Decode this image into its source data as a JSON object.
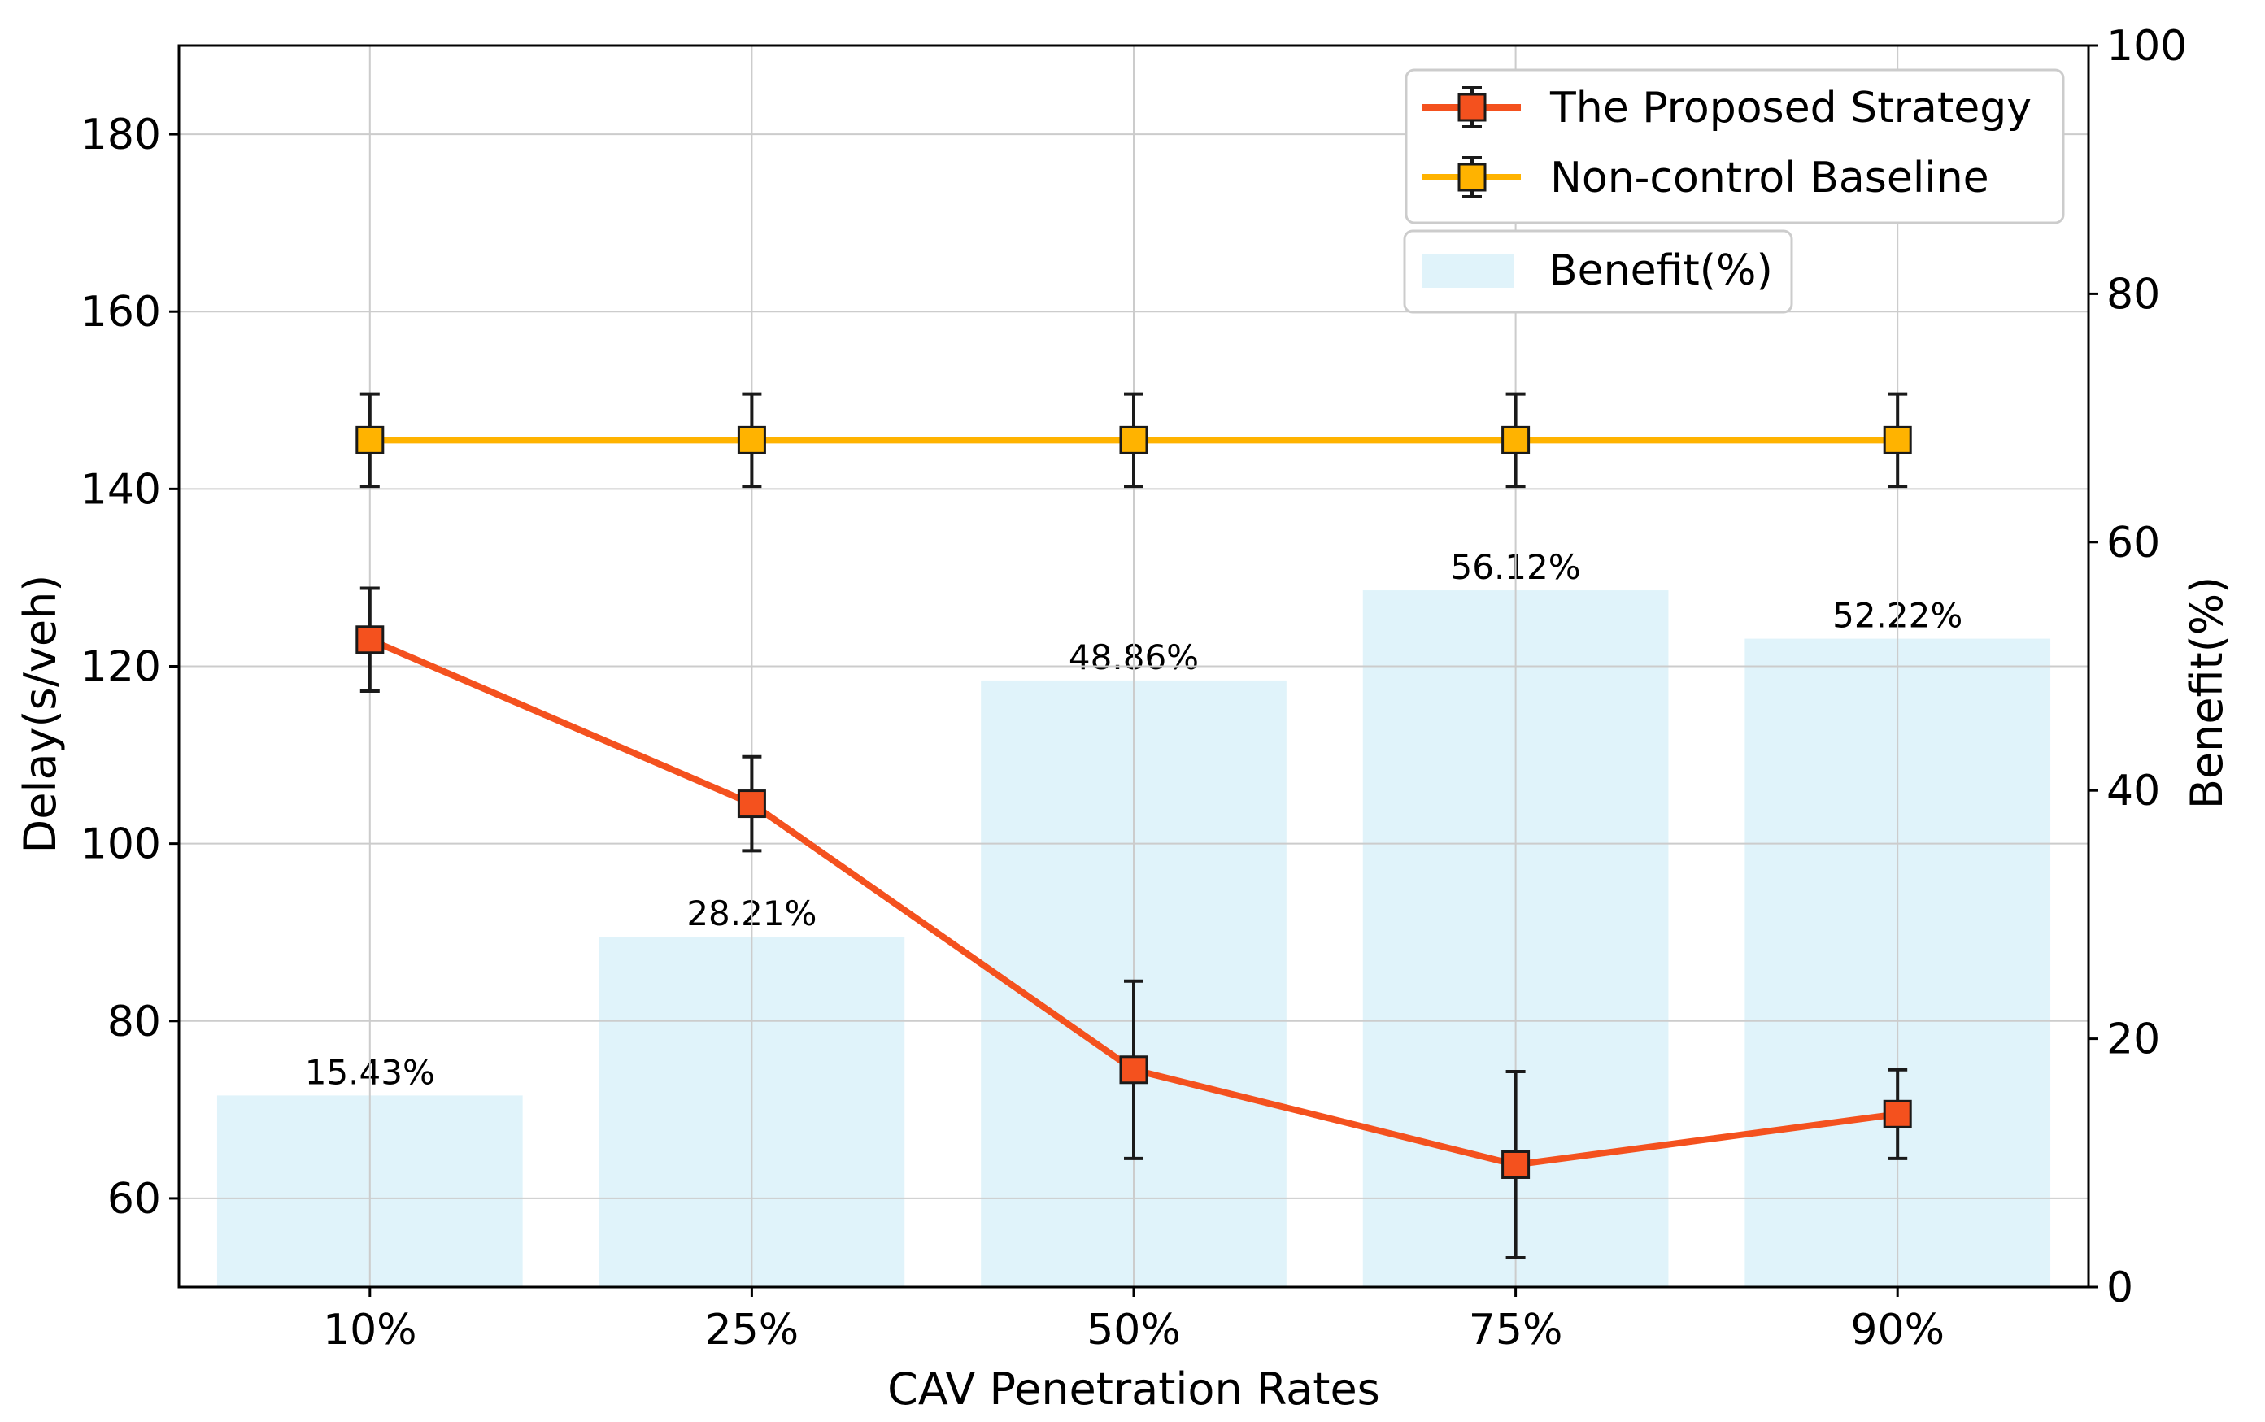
{
  "chart_data": {
    "type": "bar+line",
    "categories": [
      "10%",
      "25%",
      "50%",
      "75%",
      "90%"
    ],
    "xlabel": "CAV Penetration Rates",
    "ylabel_left": "Delay(s/veh)",
    "ylabel_right": "Benefit(%)",
    "ylim_left": [
      50,
      190
    ],
    "ylim_right": [
      0,
      100
    ],
    "yticks_left": [
      "60",
      "80",
      "100",
      "120",
      "140",
      "160",
      "180"
    ],
    "yticks_right": [
      "0",
      "20",
      "40",
      "60",
      "80",
      "100"
    ],
    "grid": true,
    "legend_position": "top-right",
    "bars": {
      "name": "Benefit(%)",
      "values": [
        15.43,
        28.21,
        48.86,
        56.12,
        52.22
      ],
      "labels": [
        "15.43%",
        "28.21%",
        "48.86%",
        "56.12%",
        "52.22%"
      ],
      "color": "#e0f3fa"
    },
    "series": [
      {
        "name": "The Proposed Strategy",
        "values": [
          123.0,
          104.5,
          74.5,
          63.8,
          69.5
        ],
        "error": [
          5.8,
          5.3,
          10.0,
          10.5,
          5.0
        ],
        "color": "#f4511e"
      },
      {
        "name": "Non-control Baseline",
        "values": [
          145.5,
          145.5,
          145.5,
          145.5,
          145.5
        ],
        "error": [
          5.2,
          5.2,
          5.2,
          5.2,
          5.2
        ],
        "color": "#ffb300"
      }
    ]
  }
}
